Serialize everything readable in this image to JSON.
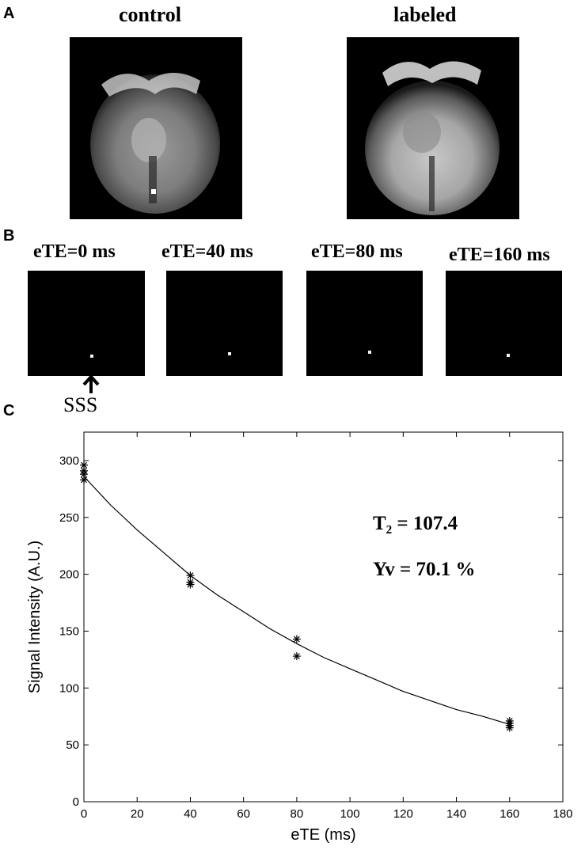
{
  "panels": {
    "a": {
      "letter": "A",
      "left_title": "control",
      "right_title": "labeled"
    },
    "b": {
      "letter": "B",
      "titles": [
        "eTE=0 ms",
        "eTE=40 ms",
        "eTE=80 ms",
        "eTE=160 ms"
      ],
      "arrow_label": "SSS"
    },
    "c": {
      "letter": "C",
      "annotation_t2": "T₂ = 107.4",
      "annotation_yv": "Yv = 70.1 %"
    }
  },
  "chart_data": {
    "type": "scatter",
    "xlabel": "eTE (ms)",
    "ylabel": "Signal Intensity (A.U.)",
    "xlim": [
      0,
      180
    ],
    "ylim": [
      0,
      325
    ],
    "xticks": [
      0,
      20,
      40,
      60,
      80,
      100,
      120,
      140,
      160,
      180
    ],
    "yticks": [
      0,
      50,
      100,
      150,
      200,
      250,
      300
    ],
    "grid": false,
    "marker": "*",
    "points": {
      "x": [
        0,
        0,
        0,
        0,
        40,
        40,
        40,
        80,
        80,
        160,
        160,
        160,
        160
      ],
      "y": [
        296,
        291,
        288,
        283,
        199,
        193,
        191,
        143,
        128,
        71,
        69,
        67,
        65
      ]
    },
    "fit": {
      "model": "exponential decay",
      "T2": 107.4,
      "x": [
        0,
        10,
        20,
        30,
        40,
        50,
        60,
        70,
        80,
        90,
        100,
        110,
        120,
        130,
        140,
        150,
        160
      ],
      "y": [
        286,
        261,
        239,
        219,
        199,
        182,
        167,
        152,
        139,
        127,
        117,
        107,
        97,
        89,
        81,
        75,
        68
      ]
    }
  }
}
